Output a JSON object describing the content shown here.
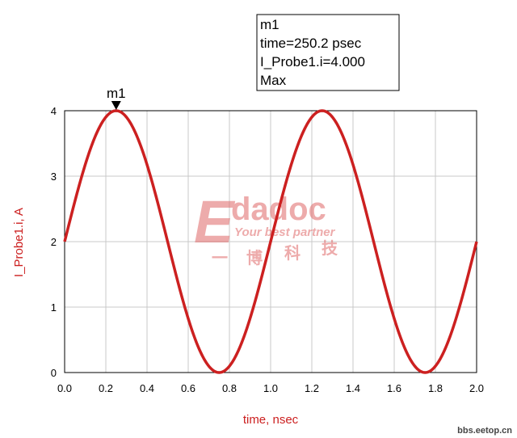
{
  "chart_data": {
    "type": "line",
    "xlabel": "time, nsec",
    "ylabel": "I_Probe1.i, A",
    "xlim": [
      0.0,
      2.0
    ],
    "ylim": [
      0,
      4
    ],
    "x_ticks": [
      "0.0",
      "0.2",
      "0.4",
      "0.6",
      "0.8",
      "1.0",
      "1.2",
      "1.4",
      "1.6",
      "1.8",
      "2.0"
    ],
    "y_ticks": [
      "0",
      "1",
      "2",
      "3",
      "4"
    ],
    "grid": true,
    "series": [
      {
        "color": "#cc2020",
        "function": "2 + 2*sin(2*pi*1GHz*t)",
        "x": [
          0.0,
          0.125,
          0.25,
          0.375,
          0.5,
          0.625,
          0.75,
          0.875,
          1.0,
          1.125,
          1.25,
          1.375,
          1.5,
          1.625,
          1.75,
          1.875,
          2.0
        ],
        "values": [
          2.0,
          3.414,
          4.0,
          3.414,
          2.0,
          0.586,
          0.0,
          0.586,
          2.0,
          3.414,
          4.0,
          3.414,
          2.0,
          0.586,
          0.0,
          0.586,
          2.0
        ]
      }
    ],
    "marker": {
      "name": "m1",
      "x": 0.2502,
      "y": 4.0,
      "readout": [
        "m1",
        "time=250.2 psec",
        "I_Probe1.i=4.000",
        "Max"
      ]
    }
  },
  "watermark": {
    "logo": "Edadoc",
    "tagline": "Your best partner",
    "chinese": [
      "一",
      "博",
      "科",
      "技"
    ]
  },
  "site_label": "bbs.eetop.cn",
  "colors": {
    "trace": "#cc2020",
    "axis_text": "#cc2020",
    "grid": "#c8c8c8",
    "watermark": "#e88a8a"
  }
}
